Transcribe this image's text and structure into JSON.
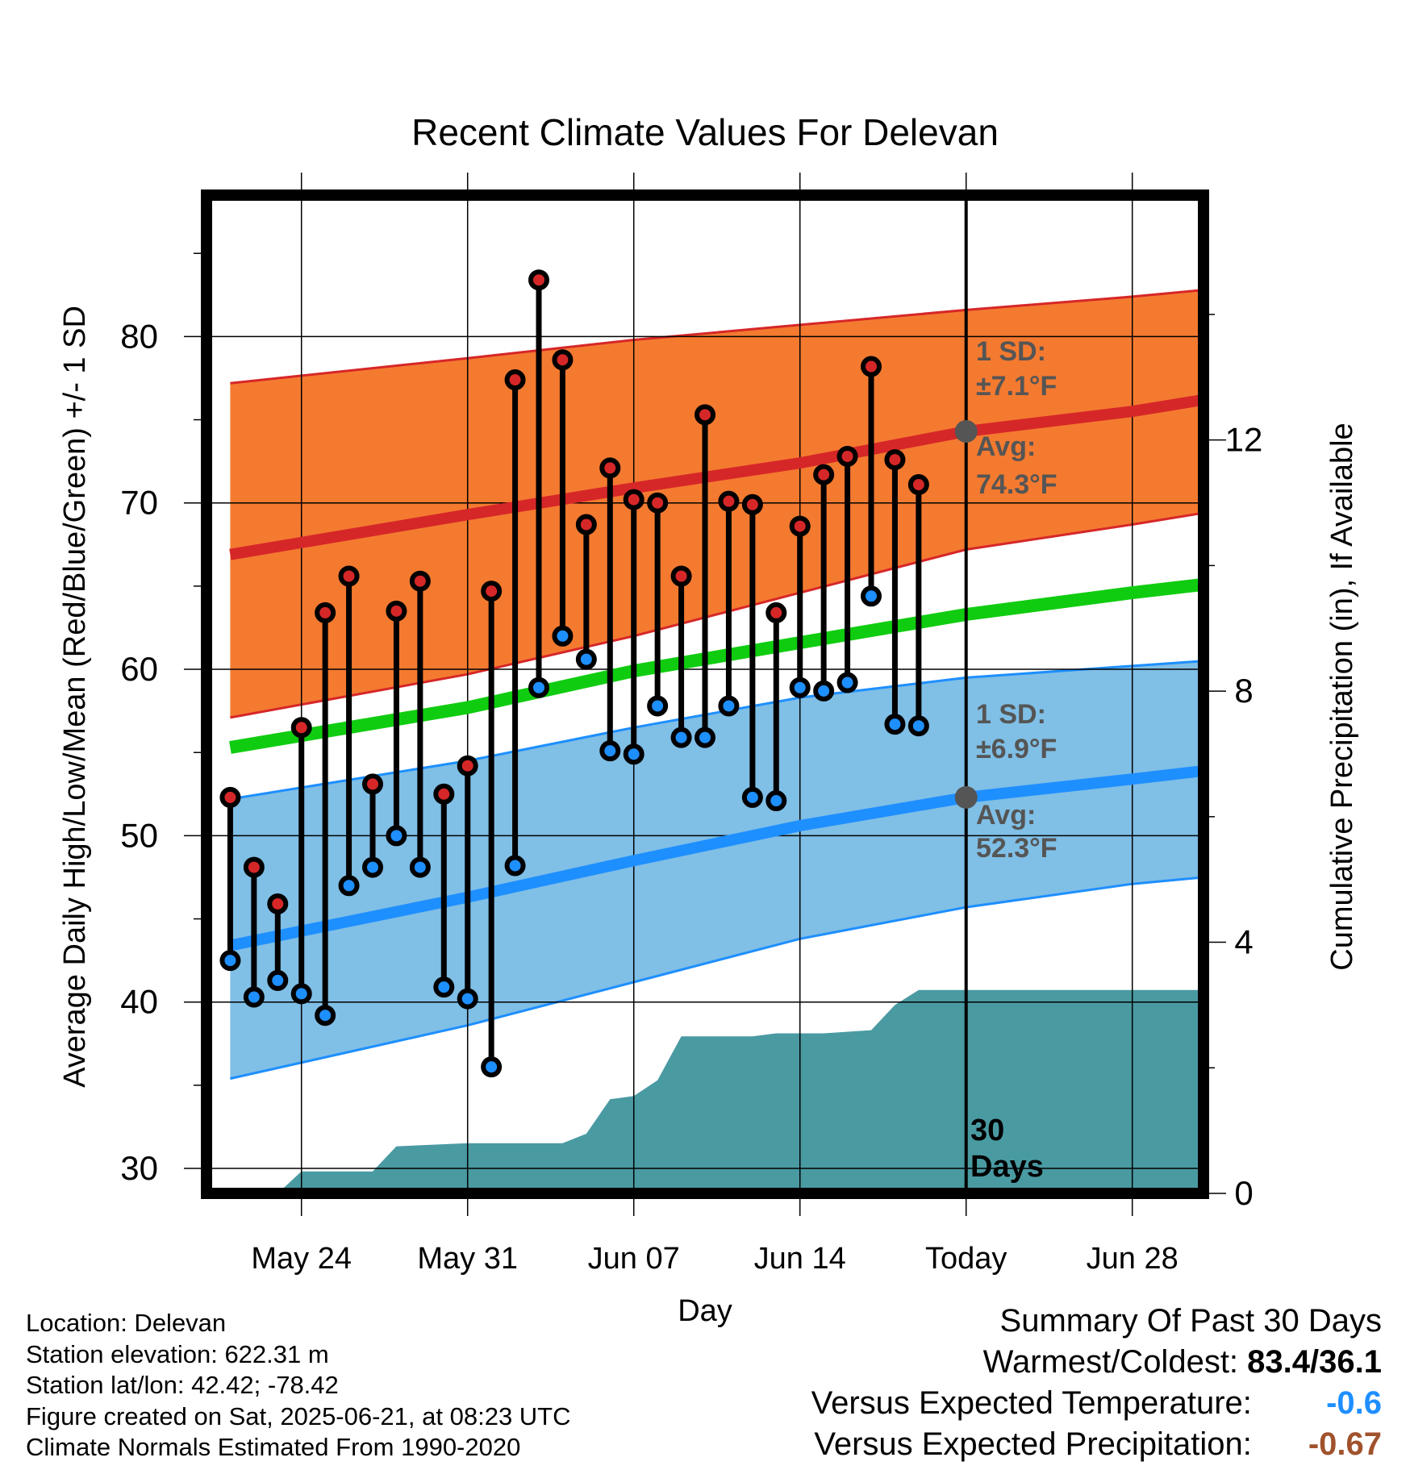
{
  "colors": {
    "high_band": "#f47a30",
    "high_avg": "#d62728",
    "low_band": "#80bfe6",
    "low_avg": "#1e8fff",
    "mean": "#10cc10",
    "precip": "#4a9aa2",
    "high_dot": "#d62728",
    "low_dot": "#1e8fff",
    "today_marker": "#555555",
    "annotation": "#555555",
    "temp_anomaly": "#1e8fff",
    "precip_anomaly": "#a0522d"
  },
  "chart_data": {
    "type": "line",
    "title": "Recent Climate Values For Delevan",
    "xlabel": "Day",
    "ylabel": "Average Daily High/Low/Mean (Red/Blue/Green) +/- 1 SD",
    "y2label": "Cumulative Precipitation (in), If Available",
    "xlim": [
      "2025-05-20",
      "2025-07-01"
    ],
    "ylim": [
      28.5,
      88.5
    ],
    "y2lim": [
      0,
      15.9
    ],
    "x_ticks": [
      {
        "date": "2025-05-24",
        "label": "May 24"
      },
      {
        "date": "2025-05-31",
        "label": "May 31"
      },
      {
        "date": "2025-06-07",
        "label": "Jun 07"
      },
      {
        "date": "2025-06-14",
        "label": "Jun 14"
      },
      {
        "date": "2025-06-21",
        "label": "Today"
      },
      {
        "date": "2025-06-28",
        "label": "Jun 28"
      }
    ],
    "y_ticks": [
      30,
      40,
      50,
      60,
      70,
      80
    ],
    "y2_ticks": [
      0,
      4,
      8,
      12
    ],
    "grid": true,
    "normals_dates": [
      "2025-05-21",
      "2025-05-31",
      "2025-06-07",
      "2025-06-14",
      "2025-06-21",
      "2025-06-28",
      "2025-07-01"
    ],
    "normal_high_avg": [
      66.9,
      69.3,
      70.9,
      72.4,
      74.3,
      75.5,
      76.2
    ],
    "normal_high_upper": [
      77.2,
      78.7,
      79.8,
      80.7,
      81.6,
      82.4,
      82.8
    ],
    "normal_high_lower": [
      57.1,
      59.7,
      62.0,
      64.6,
      67.2,
      68.7,
      69.4
    ],
    "normal_low_avg": [
      43.4,
      46.3,
      48.5,
      50.6,
      52.3,
      53.4,
      53.9
    ],
    "normal_low_upper": [
      52.2,
      54.5,
      56.5,
      58.3,
      59.5,
      60.2,
      60.5
    ],
    "normal_low_lower": [
      35.4,
      38.6,
      41.2,
      43.8,
      45.7,
      47.1,
      47.5
    ],
    "normal_mean": [
      55.3,
      57.7,
      59.9,
      61.6,
      63.3,
      64.6,
      65.1
    ],
    "series": [
      {
        "name": "High",
        "dates": [
          "2025-05-21",
          "2025-05-22",
          "2025-05-23",
          "2025-05-24",
          "2025-05-25",
          "2025-05-26",
          "2025-05-27",
          "2025-05-28",
          "2025-05-29",
          "2025-05-30",
          "2025-05-31",
          "2025-06-01",
          "2025-06-02",
          "2025-06-03",
          "2025-06-04",
          "2025-06-05",
          "2025-06-06",
          "2025-06-07",
          "2025-06-08",
          "2025-06-09",
          "2025-06-10",
          "2025-06-11",
          "2025-06-12",
          "2025-06-13",
          "2025-06-14",
          "2025-06-15",
          "2025-06-16",
          "2025-06-17",
          "2025-06-18",
          "2025-06-19",
          "2025-06-20"
        ],
        "values": [
          52.3,
          48.1,
          45.9,
          56.5,
          63.4,
          65.6,
          53.1,
          63.5,
          65.3,
          52.5,
          54.2,
          64.7,
          77.4,
          83.4,
          78.6,
          68.7,
          72.1,
          70.2,
          70.0,
          65.6,
          75.3,
          70.1,
          69.9,
          63.4,
          68.6,
          71.7,
          72.8,
          78.2,
          72.6,
          71.1,
          null
        ]
      },
      {
        "name": "Low",
        "dates": [
          "2025-05-21",
          "2025-05-22",
          "2025-05-23",
          "2025-05-24",
          "2025-05-25",
          "2025-05-26",
          "2025-05-27",
          "2025-05-28",
          "2025-05-29",
          "2025-05-30",
          "2025-05-31",
          "2025-06-01",
          "2025-06-02",
          "2025-06-03",
          "2025-06-04",
          "2025-06-05",
          "2025-06-06",
          "2025-06-07",
          "2025-06-08",
          "2025-06-09",
          "2025-06-10",
          "2025-06-11",
          "2025-06-12",
          "2025-06-13",
          "2025-06-14",
          "2025-06-15",
          "2025-06-16",
          "2025-06-17",
          "2025-06-18",
          "2025-06-19",
          "2025-06-20"
        ],
        "values": [
          42.5,
          40.3,
          41.3,
          40.5,
          39.2,
          47.0,
          48.1,
          50.0,
          48.1,
          40.9,
          40.2,
          36.1,
          48.2,
          58.9,
          62.0,
          60.6,
          55.1,
          54.9,
          57.8,
          55.9,
          55.9,
          57.8,
          52.3,
          52.1,
          58.9,
          58.7,
          59.2,
          64.4,
          56.7,
          56.6,
          null
        ]
      },
      {
        "name": "Cumulative Precipitation",
        "dates": [
          "2025-05-21",
          "2025-05-23",
          "2025-05-24",
          "2025-05-27",
          "2025-05-28",
          "2025-05-31",
          "2025-06-02",
          "2025-06-04",
          "2025-06-05",
          "2025-06-06",
          "2025-06-07",
          "2025-06-08",
          "2025-06-09",
          "2025-06-10",
          "2025-06-12",
          "2025-06-13",
          "2025-06-15",
          "2025-06-17",
          "2025-06-18",
          "2025-06-19",
          "2025-07-01"
        ],
        "values": [
          0.0,
          0.0,
          0.35,
          0.35,
          0.75,
          0.8,
          0.8,
          0.8,
          0.95,
          1.5,
          1.55,
          1.8,
          2.5,
          2.5,
          2.5,
          2.55,
          2.55,
          2.6,
          3.0,
          3.24,
          3.24
        ]
      }
    ],
    "today": {
      "date": "2025-06-21",
      "high_avg": 74.3,
      "low_avg": 52.3
    }
  },
  "annotations": {
    "high_sd_label": "1 SD:",
    "high_sd_value": "±7.1°F",
    "high_avg_label": "Avg:",
    "high_avg_value": "74.3°F",
    "low_sd_label": "1 SD:",
    "low_sd_value": "±6.9°F",
    "low_avg_label": "Avg:",
    "low_avg_value": "52.3°F",
    "window_count": "30",
    "window_unit": "Days"
  },
  "metadata": {
    "location": "Location: Delevan",
    "elevation": "Station elevation: 622.31 m",
    "latlon": "Station lat/lon: 42.42; -78.42",
    "created": "Figure created on Sat, 2025-06-21, at 08:23 UTC",
    "normals": "Climate Normals Estimated From 1990-2020"
  },
  "summary": {
    "heading": "Summary Of Past 30 Days",
    "warmest_coldest_label": "Warmest/Coldest:",
    "warmest_coldest_value": "83.4/36.1",
    "temp_label": "Versus Expected Temperature:",
    "temp_value": "-0.6",
    "precip_label": "Versus Expected Precipitation:",
    "precip_value": "-0.67"
  }
}
